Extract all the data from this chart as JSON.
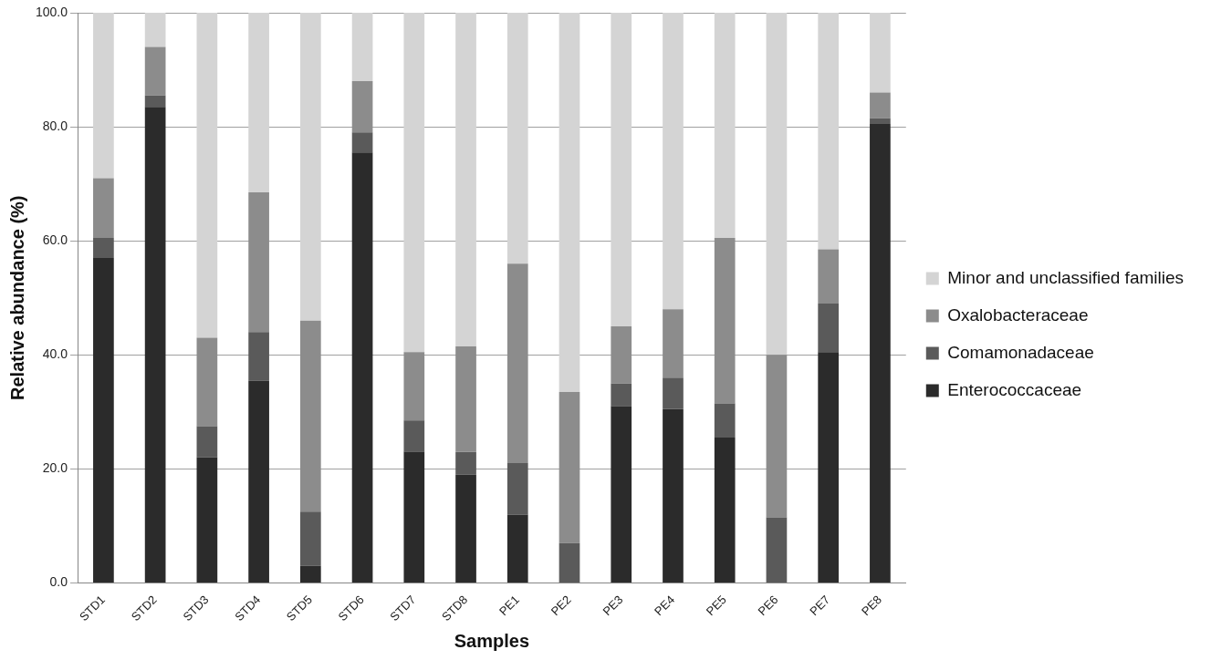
{
  "chart_data": {
    "type": "bar",
    "stacked": true,
    "xlabel": "Samples",
    "ylabel": "Relative abundance (%)",
    "categories": [
      "STD1",
      "STD2",
      "STD3",
      "STD4",
      "STD5",
      "STD6",
      "STD7",
      "STD8",
      "PE1",
      "PE2",
      "PE3",
      "PE4",
      "PE5",
      "PE6",
      "PE7",
      "PE8"
    ],
    "series": [
      {
        "name": "Enterococcaceae",
        "color": "#2b2b2b",
        "values": [
          57,
          83.5,
          22,
          35.5,
          3,
          75.5,
          23,
          19,
          12,
          0,
          31,
          30.5,
          25.5,
          0,
          40.5,
          80.5
        ]
      },
      {
        "name": "Comamonadaceae",
        "color": "#5a5a5a",
        "values": [
          3.5,
          2,
          5.5,
          8.5,
          9.5,
          3.5,
          5.5,
          4,
          9,
          7,
          4,
          5.5,
          6,
          11.5,
          8.5,
          1
        ]
      },
      {
        "name": "Oxalobacteraceae",
        "color": "#8c8c8c",
        "values": [
          10.5,
          8.5,
          15.5,
          24.5,
          33.5,
          9,
          12,
          18.5,
          35,
          26.5,
          10,
          12,
          29,
          28.5,
          9.5,
          4.5
        ]
      },
      {
        "name": "Minor and unclassified families",
        "color": "#d4d4d4",
        "values": [
          29,
          6,
          57,
          31.5,
          54,
          12,
          59.5,
          58.5,
          44,
          66.5,
          55,
          52,
          39.5,
          60,
          41.5,
          14
        ]
      }
    ],
    "ylim": [
      0,
      100
    ],
    "yticks": [
      {
        "value": 0,
        "label": "0.0"
      },
      {
        "value": 20,
        "label": "20.0"
      },
      {
        "value": 40,
        "label": "40.0"
      },
      {
        "value": 60,
        "label": "60.0"
      },
      {
        "value": 80,
        "label": "80.0"
      },
      {
        "value": 100,
        "label": "100.0"
      }
    ],
    "grid": "y",
    "legend": "right"
  }
}
